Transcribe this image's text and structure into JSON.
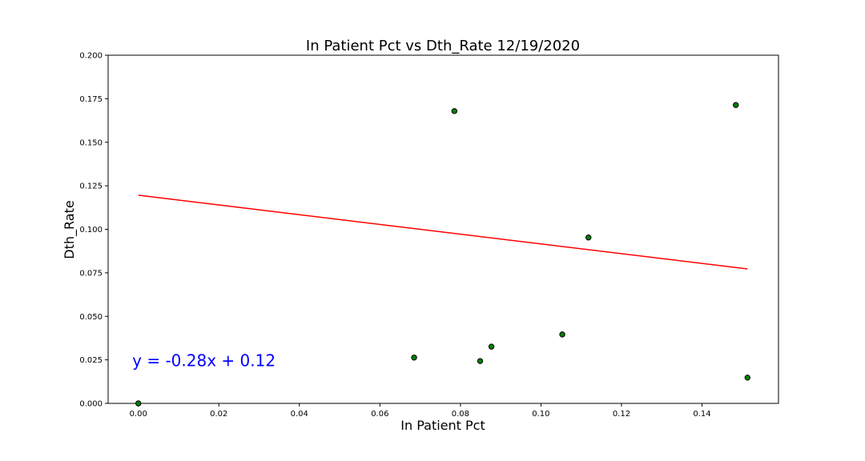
{
  "chart_data": {
    "type": "scatter",
    "title": "In Patient Pct vs Dth_Rate 12/19/2020",
    "xlabel": "In Patient Pct",
    "ylabel": "Dth_Rate",
    "xlim": [
      -0.0075,
      0.159
    ],
    "ylim": [
      0.0,
      0.2
    ],
    "xticks": [
      "0.00",
      "0.02",
      "0.04",
      "0.06",
      "0.08",
      "0.10",
      "0.12",
      "0.14"
    ],
    "yticks": [
      "0.000",
      "0.025",
      "0.050",
      "0.075",
      "0.100",
      "0.125",
      "0.150",
      "0.175",
      "0.200"
    ],
    "grid": false,
    "points": [
      {
        "x": 0.0,
        "y": 0.0
      },
      {
        "x": 0.0685,
        "y": 0.0263
      },
      {
        "x": 0.0785,
        "y": 0.1679
      },
      {
        "x": 0.0849,
        "y": 0.0243
      },
      {
        "x": 0.0877,
        "y": 0.0326
      },
      {
        "x": 0.1053,
        "y": 0.0396
      },
      {
        "x": 0.1118,
        "y": 0.0953
      },
      {
        "x": 0.1484,
        "y": 0.1714
      },
      {
        "x": 0.1513,
        "y": 0.0148
      }
    ],
    "point_color": "#008000",
    "point_edge_color": "#000000",
    "regression": {
      "slope": -0.28,
      "intercept": 0.1196,
      "x_range": [
        0.0,
        0.1513
      ],
      "color": "#ff0000"
    },
    "annotation": {
      "text": "y = -0.28x + 0.12",
      "x": -0.0015,
      "y": 0.0245,
      "color": "#0000ff"
    }
  }
}
